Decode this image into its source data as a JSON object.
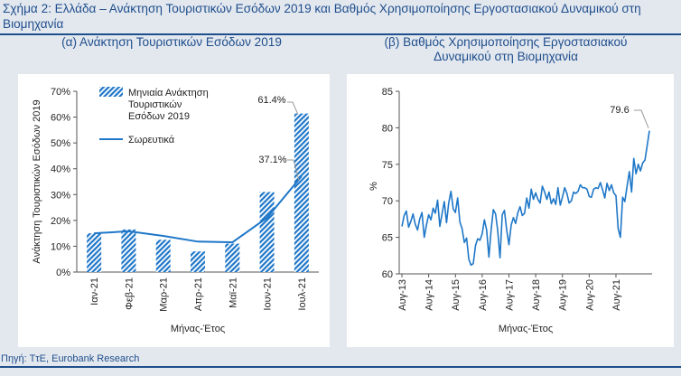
{
  "figure": {
    "title": "Σχήμα 2: Ελλάδα – Ανάκτηση Τουριστικών Εσόδων 2019 και Βαθμός Χρησιμοποίησης Εργοστασιακού Δυναμικού στη Βιομηχανία",
    "source": "Πηγή: ΤτΕ, Eurobank Research"
  },
  "colors": {
    "primary": "#1f77c8",
    "dark": "#1f4e8c",
    "background": "#e3e8ef",
    "panel": "#ffffff"
  },
  "chart_data": [
    {
      "type": "bar",
      "title": "(α) Ανάκτηση Τουριστικών Εσόδων 2019",
      "xlabel": "Μήνας-Έτος",
      "ylabel": "Ανάκτηση Τουριστικών Εσόδων 2019",
      "ylim": [
        0,
        70
      ],
      "yticks": [
        "0%",
        "10%",
        "20%",
        "30%",
        "40%",
        "50%",
        "60%",
        "70%"
      ],
      "categories": [
        "Ιαν-21",
        "Φεβ-21",
        "Μαρ-21",
        "Απρ-21",
        "Μαϊ-21",
        "Ιουν-21",
        "Ιουλ-21"
      ],
      "series": [
        {
          "name": "Μηνιαία Ανάκτηση Τουριστικών Εσόδων 2019",
          "type": "bar",
          "values": [
            15,
            16.5,
            12.5,
            8,
            11,
            31,
            61.4
          ]
        },
        {
          "name": "Σωρευτικά",
          "type": "line",
          "values": [
            15,
            15.8,
            14,
            11.8,
            11.5,
            21,
            37.1
          ]
        }
      ],
      "annotations": [
        "61.4%",
        "37.1%"
      ],
      "legend": "top-left",
      "grid": false
    },
    {
      "type": "line",
      "title": "(β) Βαθμός Χρησιμοποίησης Εργοστασιακού Δυναμικού στη Βιομηχανία",
      "xlabel": "Μήνας-Έτος",
      "ylabel": "%",
      "ylim": [
        60,
        85
      ],
      "yticks": [
        "60",
        "65",
        "70",
        "75",
        "80",
        "85"
      ],
      "xticks": [
        "Αυγ-13",
        "Αυγ-14",
        "Αυγ-15",
        "Αυγ-16",
        "Αυγ-17",
        "Αυγ-18",
        "Αυγ-19",
        "Αυγ-20",
        "Αυγ-21"
      ],
      "x_start": "Αυγ-13",
      "frequency": "monthly",
      "values": [
        66.5,
        68.0,
        68.6,
        66.4,
        67.2,
        68.2,
        66.8,
        66.0,
        67.5,
        68.4,
        65.0,
        66.7,
        68.1,
        67.4,
        69.0,
        68.3,
        70.1,
        66.5,
        68.2,
        69.9,
        67.0,
        69.7,
        71.3,
        68.9,
        68.4,
        70.4,
        67.1,
        66.2,
        64.3,
        64.9,
        62.0,
        61.2,
        61.4,
        63.9,
        64.8,
        64.6,
        65.5,
        67.4,
        66.0,
        62.3,
        65.9,
        68.8,
        68.2,
        65.9,
        62.2,
        68.1,
        68.7,
        66.0,
        64.0,
        66.7,
        67.7,
        66.9,
        68.4,
        69.2,
        68.0,
        68.3,
        70.4,
        69.0,
        71.6,
        70.2,
        71.1,
        70.2,
        69.7,
        72.0,
        71.2,
        70.2,
        71.2,
        69.6,
        70.3,
        69.5,
        71.8,
        69.4,
        70.5,
        71.8,
        71.0,
        69.7,
        70.0,
        71.2,
        71.0,
        71.3,
        72.2,
        71.8,
        71.8,
        71.6,
        70.6,
        70.5,
        71.6,
        71.8,
        71.7,
        72.5,
        71.5,
        70.4,
        72.4,
        71.4,
        72.2,
        71.1,
        70.7,
        66.2,
        65.0,
        70.5,
        69.9,
        72.0,
        74.0,
        71.2,
        75.8,
        73.7,
        75.0,
        74.1,
        75.2,
        75.6,
        77.5,
        79.6
      ],
      "annotations": [
        "79.6"
      ],
      "grid": false
    }
  ]
}
